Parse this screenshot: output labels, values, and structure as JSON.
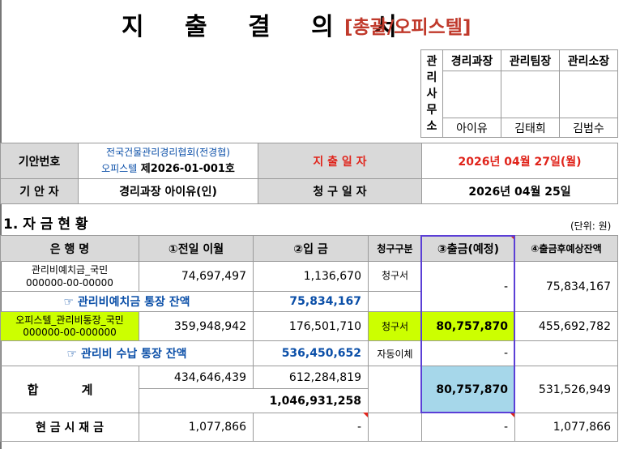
{
  "header": {
    "title": "지 출 결 의 서",
    "subtitle": "[총괄/오피스텔]"
  },
  "approval": {
    "side_label": [
      "관",
      "리",
      "사",
      "무",
      "소"
    ],
    "roles": [
      "경리과장",
      "관리팀장",
      "관리소장"
    ],
    "names": [
      "아이유",
      "김태희",
      "김범수"
    ]
  },
  "info": {
    "draft_no_label": "기안번호",
    "draft_no_line1": "전국건물관리경리협회(전경협)",
    "draft_no_line2_prefix": "오피스텔",
    "draft_no_line2_value": " 제2026-01-001호",
    "pay_date_label": "지 출 일 자",
    "pay_date_value": "2026년 04월 27일(월)",
    "drafter_label": "기 안 자",
    "drafter_value": "경리과장 아이유(인)",
    "claim_date_label": "청 구 일 자",
    "claim_date_value": "2026년  04월 25일"
  },
  "section": {
    "title": "1. 자 금 현 황",
    "unit": "(단위: 원)"
  },
  "table": {
    "headers": [
      "은 행 명",
      "①전일 이월",
      "②입 금",
      "청구구분",
      "③출금(예정)",
      "④출금후예상잔액"
    ],
    "row1": {
      "bank_line1": "관리비예치금_국민",
      "bank_line2": "000000-00-00000",
      "prev": "74,697,497",
      "deposit": "1,136,670",
      "claim_type": "청구서",
      "withdraw": "-",
      "balance": "75,834,167"
    },
    "row1_total": {
      "label": "☞ 관리비예치금 통장 잔액",
      "value": "75,834,167"
    },
    "row2": {
      "bank_line1": "오피스텔_관리비통장_국민",
      "bank_line2": "000000-00-000000",
      "prev": "359,948,942",
      "deposit": "176,501,710",
      "claim_type": "청구서",
      "withdraw": "80,757,870",
      "balance": "455,692,782"
    },
    "row2_total": {
      "label": "☞ 관리비 수납 통장 잔액",
      "value": "536,450,652",
      "claim_type": "자동이체",
      "withdraw": "-"
    },
    "sum": {
      "label": "합 계",
      "prev": "434,646,439",
      "deposit": "612,284,819",
      "combined": "1,046,931,258",
      "withdraw": "80,757,870",
      "balance": "531,526,949"
    },
    "cash": {
      "label": "현 금 시 재 금",
      "prev": "1,077,866",
      "deposit": "-",
      "withdraw": "-",
      "balance": "1,077,866"
    }
  },
  "colors": {
    "accent_red": "#e0241b",
    "link_blue": "#0b4fa8",
    "highlight_yellow": "#ccff00",
    "highlight_blue": "#a6d7ea",
    "header_gray": "#d9d9d9",
    "box_purple": "#5b3fd6"
  }
}
